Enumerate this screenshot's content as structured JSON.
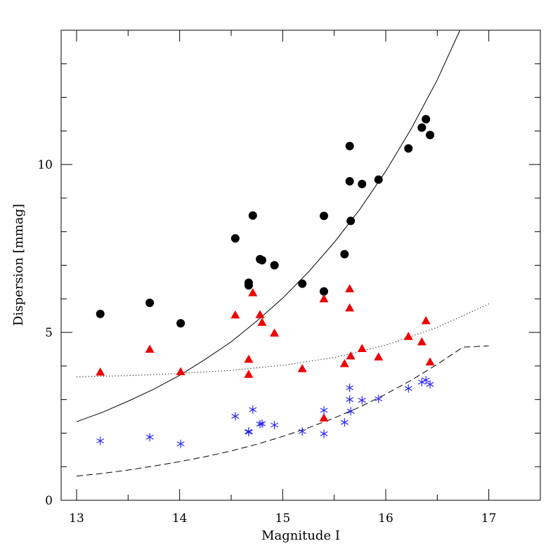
{
  "chart_data": {
    "type": "scatter",
    "title": "",
    "xlabel": "Magnitude I",
    "ylabel": "Dispersion [mmag]",
    "xlim": [
      12.85,
      17.5
    ],
    "ylim": [
      0,
      14
    ],
    "x_ticks": [
      13,
      14,
      15,
      16,
      17
    ],
    "x_tick_labels": [
      "13",
      "14",
      "15",
      "16",
      "17"
    ],
    "y_ticks": [
      0,
      5,
      10
    ],
    "y_tick_labels": [
      "0",
      "5",
      "10"
    ],
    "x_minor_step": 0.5,
    "y_minor_step": 1,
    "grid": false,
    "series": [
      {
        "marker": "circle",
        "color": "#000000",
        "points": [
          [
            13.23,
            5.55
          ],
          [
            13.71,
            5.88
          ],
          [
            14.01,
            5.27
          ],
          [
            14.54,
            7.8
          ],
          [
            14.67,
            6.48
          ],
          [
            14.67,
            6.4
          ],
          [
            14.71,
            8.48
          ],
          [
            14.78,
            7.18
          ],
          [
            14.8,
            7.15
          ],
          [
            14.92,
            7.0
          ],
          [
            15.19,
            6.45
          ],
          [
            15.4,
            6.22
          ],
          [
            15.4,
            8.47
          ],
          [
            15.6,
            7.33
          ],
          [
            15.65,
            10.55
          ],
          [
            15.65,
            9.5
          ],
          [
            15.66,
            8.32
          ],
          [
            15.77,
            9.42
          ],
          [
            15.93,
            9.55
          ],
          [
            16.22,
            10.48
          ],
          [
            16.35,
            11.1
          ],
          [
            16.39,
            11.35
          ],
          [
            16.43,
            10.88
          ]
        ]
      },
      {
        "marker": "triangle",
        "color": "#ee0000",
        "points": [
          [
            13.23,
            3.82
          ],
          [
            13.71,
            4.5
          ],
          [
            14.01,
            3.83
          ],
          [
            14.54,
            5.52
          ],
          [
            14.67,
            4.2
          ],
          [
            14.67,
            3.75
          ],
          [
            14.71,
            6.18
          ],
          [
            14.78,
            5.53
          ],
          [
            14.8,
            5.3
          ],
          [
            14.92,
            4.98
          ],
          [
            15.19,
            3.92
          ],
          [
            15.4,
            2.45
          ],
          [
            15.4,
            6.0
          ],
          [
            15.6,
            4.07
          ],
          [
            15.65,
            6.3
          ],
          [
            15.65,
            5.73
          ],
          [
            15.66,
            4.3
          ],
          [
            15.77,
            4.52
          ],
          [
            15.93,
            4.27
          ],
          [
            16.22,
            4.88
          ],
          [
            16.35,
            4.72
          ],
          [
            16.39,
            5.35
          ],
          [
            16.43,
            4.12
          ]
        ]
      },
      {
        "marker": "asterisk",
        "color": "#1a1aff",
        "points": [
          [
            13.23,
            1.77
          ],
          [
            13.71,
            1.88
          ],
          [
            14.01,
            1.68
          ],
          [
            14.54,
            2.5
          ],
          [
            14.67,
            2.05
          ],
          [
            14.67,
            2.03
          ],
          [
            14.71,
            2.7
          ],
          [
            14.78,
            2.27
          ],
          [
            14.8,
            2.28
          ],
          [
            14.92,
            2.24
          ],
          [
            15.19,
            2.05
          ],
          [
            15.4,
            1.98
          ],
          [
            15.4,
            2.68
          ],
          [
            15.6,
            2.32
          ],
          [
            15.65,
            3.35
          ],
          [
            15.65,
            3.0
          ],
          [
            15.66,
            2.65
          ],
          [
            15.77,
            2.98
          ],
          [
            15.93,
            3.02
          ],
          [
            16.22,
            3.33
          ],
          [
            16.35,
            3.52
          ],
          [
            16.39,
            3.58
          ],
          [
            16.43,
            3.45
          ]
        ]
      }
    ],
    "curves": [
      {
        "style": "solid",
        "color": "#000000",
        "points": [
          [
            13.0,
            2.34
          ],
          [
            13.25,
            2.62
          ],
          [
            13.5,
            2.95
          ],
          [
            13.75,
            3.31
          ],
          [
            14.0,
            3.72
          ],
          [
            14.25,
            4.2
          ],
          [
            14.5,
            4.72
          ],
          [
            14.75,
            5.34
          ],
          [
            15.0,
            6.02
          ],
          [
            15.25,
            6.8
          ],
          [
            15.5,
            7.68
          ],
          [
            15.75,
            8.67
          ],
          [
            16.0,
            9.8
          ],
          [
            16.25,
            11.08
          ],
          [
            16.5,
            12.52
          ],
          [
            16.72,
            14.0
          ]
        ]
      },
      {
        "style": "dotted",
        "color": "#000000",
        "points": [
          [
            13.0,
            3.68
          ],
          [
            13.5,
            3.71
          ],
          [
            14.0,
            3.78
          ],
          [
            14.5,
            3.87
          ],
          [
            15.0,
            4.02
          ],
          [
            15.5,
            4.25
          ],
          [
            16.0,
            4.62
          ],
          [
            16.5,
            5.15
          ],
          [
            17.0,
            5.85
          ]
        ]
      },
      {
        "style": "dashed",
        "color": "#000000",
        "points": [
          [
            13.0,
            0.72
          ],
          [
            13.25,
            0.8
          ],
          [
            13.5,
            0.9
          ],
          [
            13.75,
            1.02
          ],
          [
            14.0,
            1.15
          ],
          [
            14.25,
            1.3
          ],
          [
            14.5,
            1.47
          ],
          [
            14.75,
            1.67
          ],
          [
            15.0,
            1.9
          ],
          [
            15.25,
            2.16
          ],
          [
            15.5,
            2.45
          ],
          [
            15.75,
            2.78
          ],
          [
            16.0,
            3.16
          ],
          [
            16.25,
            3.58
          ],
          [
            16.5,
            4.05
          ],
          [
            16.75,
            4.56
          ],
          [
            17.0,
            4.6
          ]
        ]
      }
    ]
  }
}
